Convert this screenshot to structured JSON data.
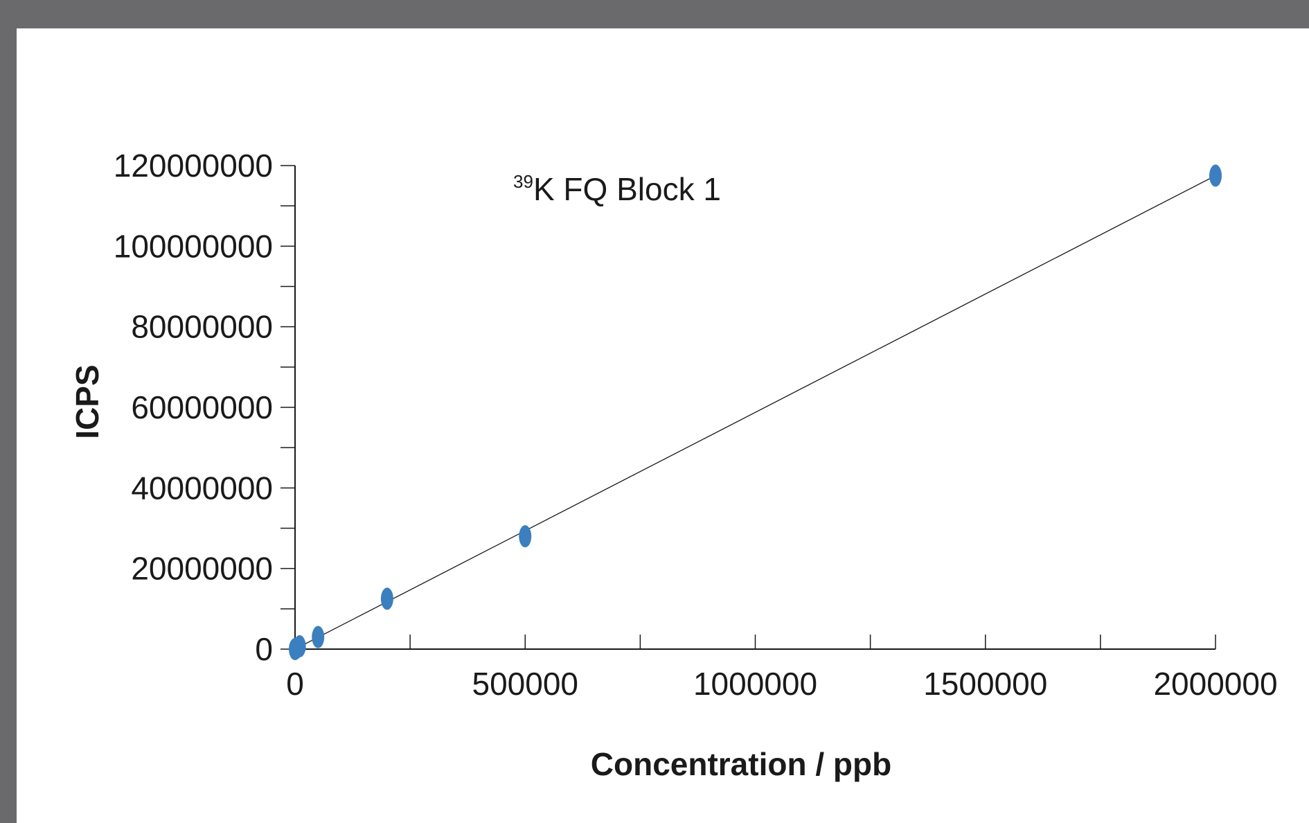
{
  "chart_data": {
    "type": "scatter",
    "title_isotope": "39",
    "title": "K FQ Block 1",
    "xlabel": "Concentration / ppb",
    "ylabel": "ICPS",
    "xlim": [
      0,
      2000000
    ],
    "ylim": [
      0,
      120000000
    ],
    "x_ticks": [
      0,
      500000,
      1000000,
      1500000,
      2000000
    ],
    "x_tick_labels": [
      "0",
      "500000",
      "1000000",
      "1500000",
      "2000000"
    ],
    "y_ticks": [
      0,
      20000000,
      40000000,
      60000000,
      80000000,
      100000000,
      120000000
    ],
    "y_tick_labels": [
      "0",
      "20000000",
      "40000000",
      "60000000",
      "80000000",
      "100000000",
      "120000000"
    ],
    "grid": false,
    "series": [
      {
        "color": "#3b7fbf",
        "points": [
          {
            "x": 0,
            "y": 0
          },
          {
            "x": 2000,
            "y": 150000
          },
          {
            "x": 10000,
            "y": 700000
          },
          {
            "x": 50000,
            "y": 3000000
          },
          {
            "x": 200000,
            "y": 12500000
          },
          {
            "x": 500000,
            "y": 28000000
          },
          {
            "x": 2000000,
            "y": 117500000
          }
        ]
      }
    ],
    "fit_line": {
      "color": "#1a1a1a",
      "x": [
        0,
        2000000
      ],
      "y": [
        0,
        117500000
      ]
    }
  }
}
